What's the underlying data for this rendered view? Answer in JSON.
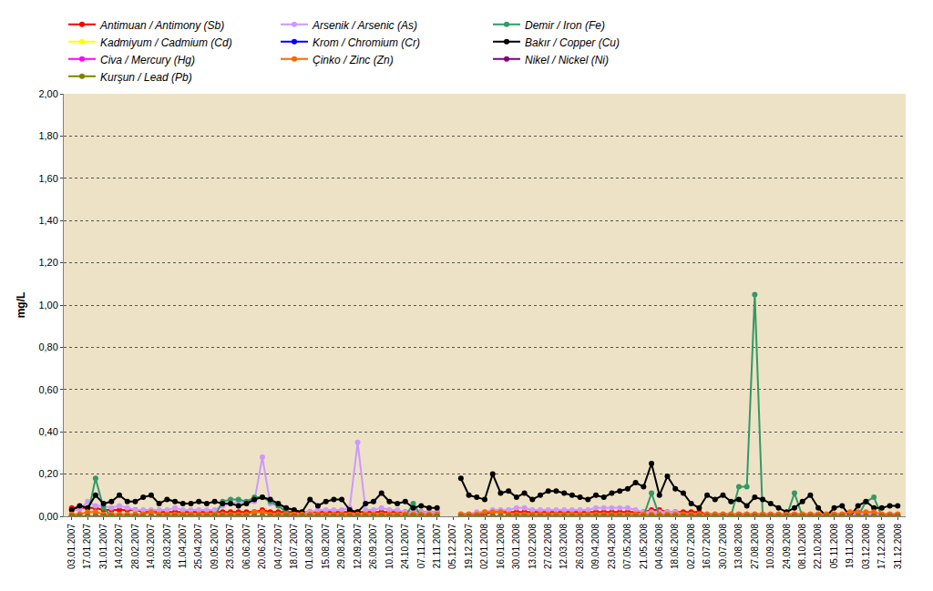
{
  "chart_data": {
    "type": "line",
    "y_label": "mg/L",
    "grid": true,
    "legend": "top",
    "marker": "circle",
    "ylim": [
      0,
      2
    ],
    "yticks": [
      {
        "value": 0,
        "label": "0,00"
      },
      {
        "value": 0.2,
        "label": "0,20"
      },
      {
        "value": 0.4,
        "label": "0,40"
      },
      {
        "value": 0.6,
        "label": "0,60"
      },
      {
        "value": 0.8,
        "label": "0,80"
      },
      {
        "value": 1,
        "label": "1,00"
      },
      {
        "value": 1.2,
        "label": "1,20"
      },
      {
        "value": 1.4,
        "label": "1,40"
      },
      {
        "value": 1.6,
        "label": "1,60"
      },
      {
        "value": 1.8,
        "label": "1,80"
      },
      {
        "value": 2,
        "label": "2,00"
      }
    ],
    "categories": [
      "03.01.2007",
      null,
      "17.01.2007",
      null,
      "31.01.2007",
      null,
      "14.02.2007",
      null,
      "28.02.2007",
      null,
      "14.03.2007",
      null,
      "28.03.2007",
      null,
      "11.04.2007",
      null,
      "25.04.2007",
      null,
      "09.05.2007",
      null,
      "23.05.2007",
      null,
      "06.06.2007",
      null,
      "20.06.2007",
      null,
      "04.07.2007",
      null,
      "18.07.2007",
      null,
      "01.08.2007",
      null,
      "15.08.2007",
      null,
      "29.08.2007",
      null,
      "12.09.2007",
      null,
      "26.09.2007",
      null,
      "10.10.2007",
      null,
      "24.10.2007",
      null,
      "07.11.2007",
      null,
      "21.11.2007",
      null,
      "05.12.2007",
      null,
      "19.12.2007",
      null,
      "02.01.2008",
      null,
      "16.01.2008",
      null,
      "30.01.2008",
      null,
      "13.02.2008",
      null,
      "27.02.2008",
      null,
      "12.03.2008",
      null,
      "26.03.2008",
      null,
      "09.04.2008",
      null,
      "23.04.2008",
      null,
      "07.05.2008",
      null,
      "21.05.2008",
      null,
      "04.06.2008",
      null,
      "18.06.2008",
      null,
      "02.07.2008",
      null,
      "16.07.2008",
      null,
      "30.07.2008",
      null,
      "13.08.2008",
      null,
      "27.08.2008",
      null,
      "10.09.2008",
      null,
      "24.09.2008",
      null,
      "08.10.2008",
      null,
      "22.10.2008",
      null,
      "05.11.2008",
      null,
      "19.11.2008",
      null,
      "03.12.2008",
      null,
      "17.12.2008",
      null,
      "31.12.2008"
    ],
    "series": [
      {
        "name": "Antimuan / Antimony (Sb)",
        "color": "#ff0000",
        "values": [
          0.04,
          0.04,
          0.04,
          0.04,
          0.03,
          0.03,
          0.03,
          0.03,
          0.03,
          0.02,
          0.02,
          0.02,
          0.02,
          0.02,
          0.02,
          0.02,
          0.02,
          0.02,
          0.02,
          0.02,
          0.02,
          0.02,
          0.02,
          0.02,
          0.03,
          0.02,
          0.02,
          0.02,
          0.02,
          0.02,
          0.02,
          0.02,
          0.02,
          0.02,
          0.02,
          0.02,
          0.02,
          0.02,
          0.02,
          0.02,
          0.02,
          0.02,
          0.02,
          0.02,
          0.02,
          0.02,
          0.02,
          null,
          null,
          0.01,
          0.01,
          0.01,
          0.01,
          0.02,
          0.02,
          0.02,
          0.02,
          0.02,
          0.02,
          0.02,
          0.02,
          0.02,
          0.02,
          0.02,
          0.02,
          0.02,
          0.02,
          0.02,
          0.02,
          0.02,
          0.02,
          0.02,
          0.02,
          0.03,
          0.03,
          0.02,
          0.02,
          0.02,
          0.02,
          0.02,
          0.01,
          0.01,
          0.01,
          0.01,
          0.01,
          0.01,
          0.01,
          0.01,
          0.01,
          0.01,
          0.01,
          0.01,
          0.01,
          0.01,
          0.01,
          0.01,
          0.01,
          0.01,
          0.01,
          0.01,
          0.01,
          0.01,
          0.01,
          0.01,
          0.01
        ]
      },
      {
        "name": "Arsenik / Arsenic (As)",
        "color": "#cc99ff",
        "values": [
          0.03,
          0.03,
          0.07,
          0.05,
          0.05,
          0.04,
          0.05,
          0.04,
          0.03,
          0.03,
          0.03,
          0.03,
          0.03,
          0.04,
          0.03,
          0.03,
          0.03,
          0.03,
          0.03,
          0.05,
          0.06,
          0.07,
          0.06,
          0.07,
          0.28,
          0.06,
          0.05,
          0.04,
          0.03,
          0.02,
          0.02,
          0.03,
          0.03,
          0.03,
          0.03,
          0.04,
          0.35,
          0.03,
          0.03,
          0.04,
          0.03,
          0.03,
          0.02,
          0.02,
          0.02,
          0.02,
          0.02,
          null,
          null,
          0.01,
          0.01,
          0.02,
          0.02,
          0.03,
          0.03,
          0.03,
          0.04,
          0.04,
          0.03,
          0.03,
          0.03,
          0.03,
          0.03,
          0.03,
          0.03,
          0.03,
          0.04,
          0.04,
          0.04,
          0.04,
          0.04,
          0.03,
          0.02,
          0.02,
          0.02,
          0.02,
          0.02,
          0.01,
          0.01,
          0.01,
          0.01,
          0.01,
          0.01,
          0.01,
          0.01,
          0.01,
          0.01,
          0.01,
          0.01,
          0.01,
          0.01,
          0.01,
          0.01,
          0.01,
          0.01,
          0.01,
          0.01,
          0.01,
          0.01,
          0.01,
          0.01,
          0.01,
          0.01,
          0.01,
          0.01
        ]
      },
      {
        "name": "Demir / Iron (Fe)",
        "color": "#339966",
        "values": [
          0,
          0,
          0,
          0.18,
          0.04,
          0,
          0,
          0,
          0,
          0,
          0,
          0,
          0,
          0,
          0,
          0,
          0,
          0,
          0,
          0.07,
          0.08,
          0.08,
          0.07,
          0.09,
          0.09,
          0.07,
          0.05,
          0.02,
          0,
          0,
          0,
          0,
          0,
          0,
          0,
          0,
          0,
          0,
          0,
          0,
          0,
          0,
          0,
          0.06,
          0,
          0,
          0,
          null,
          null,
          0,
          0,
          0,
          0,
          0,
          0,
          0,
          0,
          0,
          0,
          0,
          0,
          0,
          0,
          0,
          0,
          0,
          0,
          0,
          0,
          0,
          0,
          0,
          0,
          0.11,
          0,
          0,
          0,
          0,
          0,
          0,
          0,
          0,
          0,
          0,
          0.14,
          0.14,
          1.05,
          0,
          0,
          0,
          0,
          0.11,
          0,
          0,
          0,
          0,
          0,
          0,
          0,
          0,
          0.07,
          0.09,
          0,
          0,
          0
        ]
      },
      {
        "name": "Kadmiyum / Cadmium (Cd)",
        "color": "#ffff00",
        "values": [
          0,
          0,
          0,
          0,
          0,
          0,
          0,
          0,
          0,
          0,
          0,
          0,
          0,
          0,
          0,
          0,
          0,
          0,
          0,
          0,
          0,
          0,
          0,
          0,
          0,
          0,
          0,
          0,
          0,
          0,
          0,
          0,
          0,
          0,
          0,
          0,
          0,
          0,
          0,
          0,
          0,
          0,
          0,
          0,
          0,
          0,
          0,
          null,
          null,
          0,
          0,
          0,
          0,
          0,
          0,
          0,
          0,
          0,
          0,
          0,
          0,
          0,
          0,
          0,
          0,
          0,
          0,
          0,
          0,
          0,
          0,
          0,
          0,
          0,
          0,
          0,
          0,
          0,
          0,
          0,
          0,
          0,
          0,
          0,
          0,
          0,
          0,
          0,
          0,
          0,
          0,
          0,
          0,
          0,
          0,
          0,
          0,
          0,
          0,
          0,
          0,
          0,
          0,
          0,
          0
        ]
      },
      {
        "name": "Krom / Chromium (Cr)",
        "color": "#0000ff",
        "values": [
          0,
          0,
          0,
          0,
          0,
          0,
          0,
          0,
          0,
          0,
          0,
          0,
          0,
          0,
          0,
          0,
          0,
          0,
          0,
          0,
          0,
          0,
          0,
          0,
          0,
          0,
          0,
          0,
          0,
          0,
          0,
          0,
          0,
          0,
          0,
          0,
          0,
          0,
          0,
          0,
          0,
          0,
          0,
          0,
          0,
          0,
          0,
          null,
          null,
          0,
          0,
          0,
          0,
          0,
          0,
          0,
          0,
          0,
          0,
          0,
          0,
          0,
          0,
          0,
          0,
          0,
          0,
          0,
          0,
          0,
          0,
          0,
          0,
          0,
          0,
          0,
          0,
          0,
          0,
          0,
          0,
          0,
          0,
          0,
          0,
          0,
          0,
          0,
          0,
          0,
          0,
          0,
          0,
          0,
          0,
          0,
          0,
          0,
          0,
          0,
          0,
          0,
          0,
          0,
          0
        ]
      },
      {
        "name": "Bakır / Copper (Cu)",
        "color": "#000000",
        "values": [
          0.03,
          0.05,
          0.04,
          0.1,
          0.06,
          0.07,
          0.1,
          0.07,
          0.07,
          0.09,
          0.1,
          0.06,
          0.08,
          0.07,
          0.06,
          0.06,
          0.07,
          0.06,
          0.07,
          0.06,
          0.06,
          0.05,
          0.06,
          0.08,
          0.09,
          0.08,
          0.06,
          0.04,
          0.03,
          0.02,
          0.08,
          0.05,
          0.07,
          0.08,
          0.08,
          0.03,
          0.02,
          0.06,
          0.07,
          0.11,
          0.07,
          0.06,
          0.07,
          0.04,
          0.05,
          0.04,
          0.04,
          null,
          null,
          0.18,
          0.1,
          0.09,
          0.08,
          0.2,
          0.11,
          0.12,
          0.09,
          0.11,
          0.08,
          0.1,
          0.12,
          0.12,
          0.11,
          0.1,
          0.09,
          0.08,
          0.1,
          0.09,
          0.11,
          0.12,
          0.13,
          0.16,
          0.14,
          0.25,
          0.1,
          0.19,
          0.13,
          0.11,
          0.06,
          0.04,
          0.1,
          0.08,
          0.1,
          0.07,
          0.08,
          0.05,
          0.09,
          0.08,
          0.06,
          0.04,
          0.02,
          0.04,
          0.07,
          0.1,
          0.04,
          0.0,
          0.04,
          0.05,
          0.0,
          0.05,
          0.07,
          0.04,
          0.04,
          0.05,
          0.05
        ]
      },
      {
        "name": "Civa / Mercury (Hg)",
        "color": "#ff00ff",
        "values": [
          0,
          0,
          0,
          0,
          0,
          0,
          0,
          0,
          0,
          0,
          0,
          0,
          0,
          0,
          0,
          0,
          0,
          0,
          0,
          0,
          0,
          0,
          0,
          0,
          0,
          0,
          0,
          0,
          0,
          0,
          0,
          0,
          0,
          0,
          0,
          0,
          0,
          0,
          0,
          0,
          0,
          0,
          0,
          0,
          0,
          0,
          0,
          null,
          null,
          0,
          0,
          0,
          0,
          0,
          0,
          0,
          0,
          0,
          0,
          0,
          0,
          0,
          0,
          0,
          0,
          0,
          0,
          0,
          0,
          0,
          0,
          0,
          0,
          0,
          0,
          0,
          0,
          0,
          0,
          0,
          0,
          0,
          0,
          0,
          0,
          0,
          0,
          0,
          0,
          0,
          0,
          0,
          0,
          0,
          0,
          0,
          0,
          0,
          0,
          0,
          0,
          0,
          0,
          0,
          0
        ]
      },
      {
        "name": "Çinko / Zinc (Zn)",
        "color": "#ff6600",
        "values": [
          0.01,
          0.01,
          0.02,
          0.02,
          0.01,
          0.01,
          0.01,
          0.01,
          0.01,
          0.01,
          0.02,
          0.01,
          0.01,
          0.01,
          0.01,
          0.01,
          0.01,
          0.01,
          0.01,
          0.01,
          0.01,
          0.01,
          0.01,
          0.02,
          0.02,
          0.01,
          0.01,
          0.01,
          0.01,
          0.01,
          0.01,
          0.01,
          0.01,
          0.01,
          0.01,
          0.01,
          0.01,
          0.01,
          0.01,
          0.01,
          0.01,
          0.01,
          0.01,
          0.01,
          0.01,
          0.01,
          0.01,
          null,
          null,
          0.01,
          0.01,
          0.01,
          0.02,
          0.02,
          0.02,
          0.01,
          0.01,
          0.01,
          0.01,
          0.01,
          0.01,
          0.01,
          0.01,
          0.01,
          0.01,
          0.01,
          0.01,
          0.01,
          0.01,
          0.01,
          0.01,
          0.01,
          0.01,
          0.01,
          0.01,
          0.01,
          0.01,
          0.01,
          0.01,
          0.01,
          0.01,
          0.01,
          0.01,
          0.01,
          0.01,
          0.01,
          0.01,
          0.01,
          0.01,
          0.01,
          0.01,
          0.01,
          0.01,
          0.01,
          0.01,
          0.01,
          0.01,
          0.01,
          0.02,
          0.02,
          0.02,
          0.02,
          0.01,
          0.01,
          0.01
        ]
      },
      {
        "name": "Nikel / Nickel (Ni)",
        "color": "#800080",
        "values": [
          0,
          0,
          0,
          0,
          0,
          0,
          0,
          0,
          0,
          0,
          0,
          0,
          0,
          0,
          0,
          0,
          0,
          0,
          0,
          0,
          0,
          0,
          0,
          0,
          0,
          0,
          0,
          0,
          0,
          0,
          0,
          0,
          0,
          0,
          0,
          0,
          0,
          0,
          0,
          0,
          0,
          0,
          0,
          0,
          0,
          0,
          0,
          null,
          null,
          0,
          0,
          0,
          0,
          0,
          0,
          0,
          0,
          0,
          0,
          0,
          0,
          0,
          0,
          0,
          0,
          0,
          0,
          0,
          0,
          0,
          0,
          0,
          0,
          0,
          0,
          0,
          0,
          0,
          0,
          0,
          0,
          0,
          0,
          0,
          0,
          0,
          0,
          0,
          0,
          0,
          0,
          0,
          0,
          0,
          0,
          0,
          0,
          0,
          0,
          0,
          0,
          0,
          0,
          0,
          0
        ]
      },
      {
        "name": "Kurşun / Lead (Pb)",
        "color": "#808000",
        "values": [
          0,
          0,
          0,
          0,
          0,
          0,
          0,
          0,
          0,
          0,
          0,
          0,
          0,
          0,
          0,
          0,
          0,
          0,
          0,
          0,
          0,
          0,
          0,
          0,
          0,
          0,
          0,
          0,
          0,
          0,
          0,
          0,
          0,
          0,
          0,
          0,
          0,
          0,
          0,
          0,
          0,
          0,
          0,
          0,
          0,
          0,
          0,
          null,
          null,
          0,
          0,
          0,
          0,
          0,
          0,
          0,
          0,
          0,
          0,
          0,
          0,
          0,
          0,
          0,
          0,
          0,
          0,
          0,
          0,
          0,
          0,
          0,
          0,
          0,
          0,
          0,
          0,
          0,
          0,
          0,
          0,
          0,
          0,
          0,
          0,
          0,
          0,
          0,
          0,
          0,
          0,
          0,
          0,
          0,
          0,
          0,
          0,
          0,
          0,
          0,
          0,
          0,
          0,
          0,
          0
        ]
      }
    ]
  }
}
